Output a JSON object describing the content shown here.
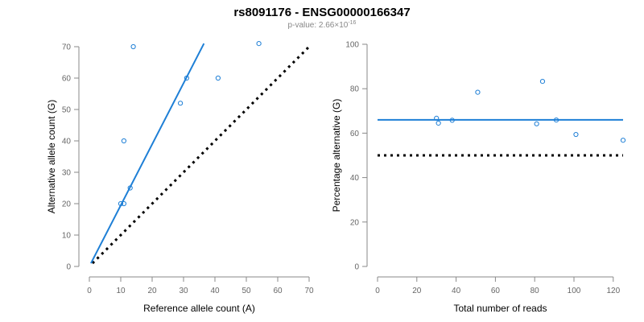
{
  "header": {
    "title": "rs8091176 - ENSG00000166347",
    "pvalue_prefix": "p-value: 2.66×10",
    "pvalue_exponent": "-16"
  },
  "colors": {
    "points": "#1e7fd6",
    "fit_line": "#1e7fd6",
    "reference_line": "#000000",
    "axis": "#888888"
  },
  "chart_data": [
    {
      "type": "scatter",
      "title": "",
      "xlabel": "Reference allele count (A)",
      "ylabel": "Alternative allele count (G)",
      "xlim": [
        0,
        70
      ],
      "ylim": [
        0,
        70
      ],
      "xticks": [
        0,
        10,
        20,
        30,
        40,
        50,
        60,
        70
      ],
      "yticks": [
        0,
        10,
        20,
        30,
        40,
        50,
        60,
        70
      ],
      "grid": false,
      "points": [
        {
          "x": 10,
          "y": 20
        },
        {
          "x": 11,
          "y": 20
        },
        {
          "x": 11,
          "y": 40
        },
        {
          "x": 13,
          "y": 25
        },
        {
          "x": 14,
          "y": 70
        },
        {
          "x": 29,
          "y": 52
        },
        {
          "x": 31,
          "y": 60
        },
        {
          "x": 41,
          "y": 60
        },
        {
          "x": 54,
          "y": 71
        }
      ],
      "fit_line": {
        "x": [
          0.5,
          36.5
        ],
        "y": [
          1,
          71
        ]
      },
      "reference_line": {
        "x": [
          1,
          70
        ],
        "y": [
          1,
          70
        ]
      }
    },
    {
      "type": "scatter",
      "title": "",
      "xlabel": "Total number of reads",
      "ylabel": "Percentage alternative (G)",
      "xlim": [
        0,
        125
      ],
      "ylim": [
        0,
        100
      ],
      "xticks": [
        0,
        20,
        40,
        60,
        80,
        100,
        120
      ],
      "yticks": [
        0,
        20,
        40,
        60,
        80,
        100
      ],
      "grid": false,
      "points": [
        {
          "x": 30,
          "y": 66.7
        },
        {
          "x": 31,
          "y": 64.5
        },
        {
          "x": 38,
          "y": 65.8
        },
        {
          "x": 51,
          "y": 78.4
        },
        {
          "x": 81,
          "y": 64.2
        },
        {
          "x": 84,
          "y": 83.3
        },
        {
          "x": 91,
          "y": 65.9
        },
        {
          "x": 101,
          "y": 59.4
        },
        {
          "x": 125,
          "y": 56.8
        }
      ],
      "fit_line": {
        "x": [
          0,
          125
        ],
        "y": [
          66,
          66
        ]
      },
      "reference_line": {
        "x": [
          0,
          125
        ],
        "y": [
          50,
          50
        ]
      }
    }
  ]
}
